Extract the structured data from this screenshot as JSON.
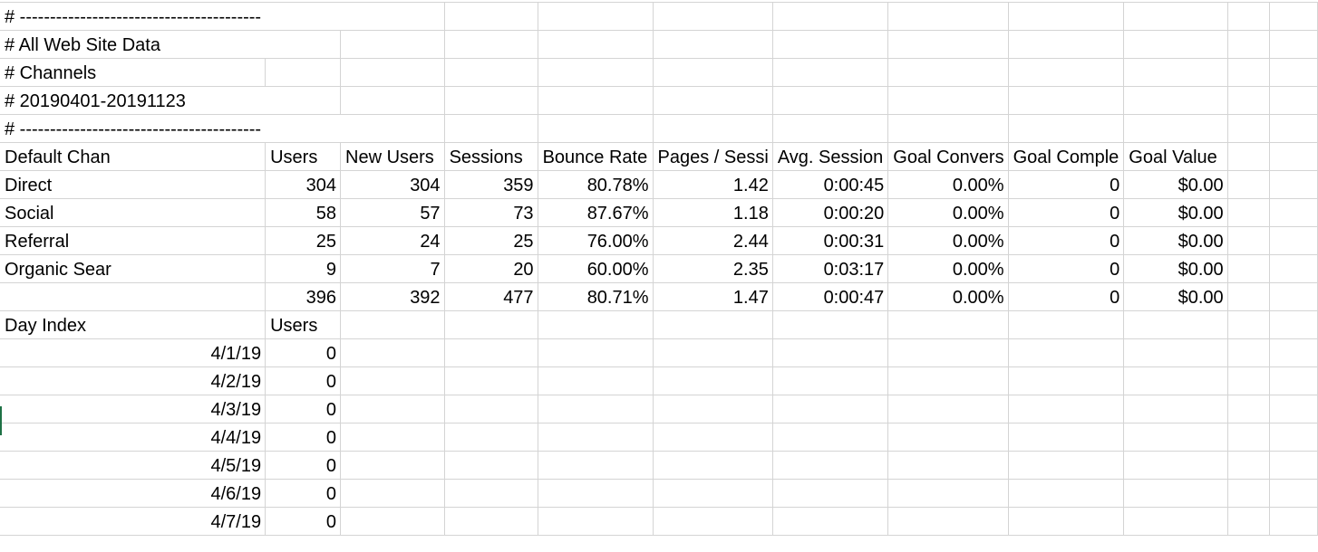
{
  "header_lines": [
    "# ----------------------------------------",
    "# All Web Site Data",
    "# Channels",
    "# 20190401-20191123",
    "# ----------------------------------------"
  ],
  "columns": [
    "Default Chan",
    "Users",
    "New Users",
    "Sessions",
    "Bounce Rate",
    "Pages / Sessi",
    "Avg. Session",
    "Goal Convers",
    "Goal Comple",
    "Goal Value"
  ],
  "rows": [
    [
      "Direct",
      "304",
      "304",
      "359",
      "80.78%",
      "1.42",
      "0:00:45",
      "0.00%",
      "0",
      "$0.00"
    ],
    [
      "Social",
      "58",
      "57",
      "73",
      "87.67%",
      "1.18",
      "0:00:20",
      "0.00%",
      "0",
      "$0.00"
    ],
    [
      "Referral",
      "25",
      "24",
      "25",
      "76.00%",
      "2.44",
      "0:00:31",
      "0.00%",
      "0",
      "$0.00"
    ],
    [
      "Organic Sear",
      "9",
      "7",
      "20",
      "60.00%",
      "2.35",
      "0:03:17",
      "0.00%",
      "0",
      "$0.00"
    ]
  ],
  "totals": [
    "",
    "396",
    "392",
    "477",
    "80.71%",
    "1.47",
    "0:00:47",
    "0.00%",
    "0",
    "$0.00"
  ],
  "day_columns": [
    "Day Index",
    "Users"
  ],
  "days": [
    [
      "4/1/19",
      "0"
    ],
    [
      "4/2/19",
      "0"
    ],
    [
      "4/3/19",
      "0"
    ],
    [
      "4/4/19",
      "0"
    ],
    [
      "4/5/19",
      "0"
    ],
    [
      "4/6/19",
      "0"
    ],
    [
      "4/7/19",
      "0"
    ]
  ],
  "colors": {
    "gridline": "#d4d4d4",
    "text": "#000000",
    "active_marker": "#1e7145"
  }
}
